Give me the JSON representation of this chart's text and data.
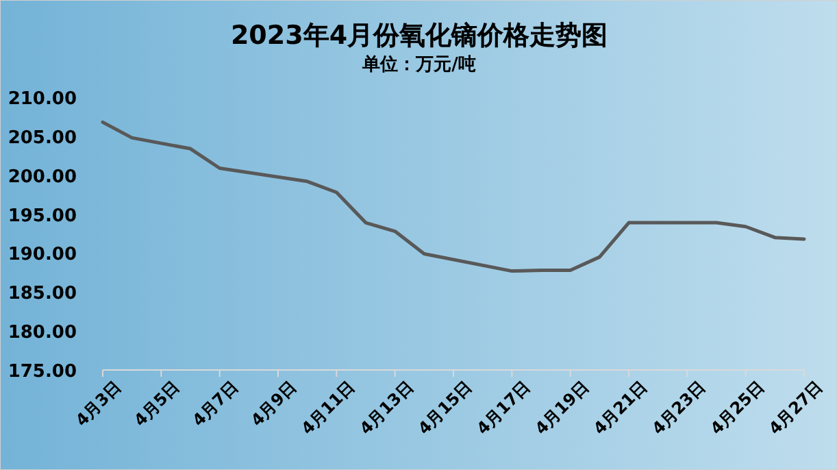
{
  "chart_data": {
    "type": "line",
    "title": "2023年4月份氧化镝价格走势图",
    "subtitle": "单位：万元/吨",
    "x": [
      "--04-03",
      "--04-04",
      "--04-06",
      "--04-07",
      "--04-10",
      "--04-11",
      "--04-12",
      "--04-13",
      "--04-14",
      "--04-17",
      "--04-18",
      "--04-19",
      "--04-20",
      "--04-21",
      "--04-24",
      "--04-25",
      "--04-26",
      "--04-27"
    ],
    "values": [
      206.8,
      204.8,
      203.4,
      200.9,
      199.2,
      197.8,
      193.9,
      192.8,
      189.9,
      187.7,
      187.8,
      187.8,
      189.5,
      193.9,
      193.9,
      193.4,
      192.0,
      191.8
    ],
    "color": "#595959",
    "xlim": [
      "--04-03",
      "--04-27"
    ],
    "xticks": [
      {
        "value": "--04-03",
        "label": "4月3日"
      },
      {
        "value": "--04-05",
        "label": "4月5日"
      },
      {
        "value": "--04-07",
        "label": "4月7日"
      },
      {
        "value": "--04-09",
        "label": "4月9日"
      },
      {
        "value": "--04-11",
        "label": "4月11日"
      },
      {
        "value": "--04-13",
        "label": "4月13日"
      },
      {
        "value": "--04-15",
        "label": "4月15日"
      },
      {
        "value": "--04-17",
        "label": "4月17日"
      },
      {
        "value": "--04-19",
        "label": "4月19日"
      },
      {
        "value": "--04-21",
        "label": "4月21日"
      },
      {
        "value": "--04-23",
        "label": "4月23日"
      },
      {
        "value": "--04-25",
        "label": "4月25日"
      },
      {
        "value": "--04-27",
        "label": "4月27日"
      }
    ],
    "ylim": [
      175,
      210
    ],
    "yticks": [
      {
        "value": 175,
        "label": "175.00"
      },
      {
        "value": 180,
        "label": "180.00"
      },
      {
        "value": 185,
        "label": "185.00"
      },
      {
        "value": 190,
        "label": "190.00"
      },
      {
        "value": 195,
        "label": "195.00"
      },
      {
        "value": 200,
        "label": "200.00"
      },
      {
        "value": 205,
        "label": "205.00"
      },
      {
        "value": 210,
        "label": "210.00"
      }
    ],
    "line_style": "solid"
  }
}
